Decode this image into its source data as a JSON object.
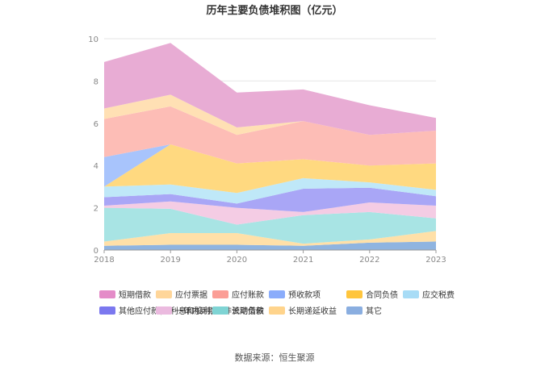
{
  "chart_data": {
    "type": "area",
    "stacked": true,
    "title": "历年主要负债堆积图（亿元）",
    "x": [
      "2018",
      "2019",
      "2020",
      "2021",
      "2022",
      "2023"
    ],
    "ylim": [
      0,
      10
    ],
    "yticks": [
      "0",
      "2",
      "4",
      "6",
      "8",
      "10"
    ],
    "grid": true,
    "legend_position": "bottom",
    "series": [
      {
        "name": "其它",
        "color": "#8fb4e0",
        "values": [
          0.2,
          0.25,
          0.25,
          0.2,
          0.35,
          0.4
        ]
      },
      {
        "name": "长期递延收益",
        "color": "#ffe0a8",
        "values": [
          0.2,
          0.55,
          0.55,
          0.1,
          0.15,
          0.5
        ]
      },
      {
        "name": "长期借款",
        "color": "#a8e4e4",
        "values": [
          1.6,
          1.15,
          0.4,
          1.35,
          1.3,
          0.6
        ]
      },
      {
        "name": "一年内到期的非流动负债",
        "color": "#f4cce4",
        "values": [
          0.1,
          0.35,
          0.8,
          0.15,
          0.45,
          0.6
        ]
      },
      {
        "name": "其他应付款(含利息和股利)",
        "color": "#a9a6f6",
        "values": [
          0.4,
          0.35,
          0.2,
          1.1,
          0.7,
          0.45
        ]
      },
      {
        "name": "应交税费",
        "color": "#bfe8f8",
        "values": [
          0.5,
          0.45,
          0.5,
          0.5,
          0.25,
          0.3
        ]
      },
      {
        "name": "合同负债",
        "color": "#ffd980",
        "values": [
          0,
          1.9,
          1.4,
          0.9,
          0.8,
          1.25
        ]
      },
      {
        "name": "预收款项",
        "color": "#a8c4fc",
        "values": [
          1.4,
          0,
          0,
          0,
          0,
          0
        ]
      },
      {
        "name": "应付账款",
        "color": "#fdbdb6",
        "values": [
          1.8,
          1.8,
          1.35,
          1.8,
          1.45,
          1.55
        ]
      },
      {
        "name": "应付票据",
        "color": "#ffe0b4",
        "values": [
          0.5,
          0.55,
          0.35,
          0,
          0,
          0
        ]
      },
      {
        "name": "短期借款",
        "color": "#e8acd4",
        "values": [
          2.2,
          2.45,
          1.65,
          1.5,
          1.4,
          0.6
        ]
      }
    ],
    "legend": [
      {
        "name": "短期借款",
        "color": "#e48cc8"
      },
      {
        "name": "应付票据",
        "color": "#ffd69a"
      },
      {
        "name": "应付账款",
        "color": "#fb9e96"
      },
      {
        "name": "预收款项",
        "color": "#8aacfb"
      },
      {
        "name": "合同负债",
        "color": "#ffc53d"
      },
      {
        "name": "应交税费",
        "color": "#a8dcf6"
      },
      {
        "name": "其他应付款(含利息和股利)",
        "color": "#7b78ef"
      },
      {
        "name": "一年内到期的非流动负债",
        "color": "#ebbadf"
      },
      {
        "name": "长期借款",
        "color": "#7fd4d4"
      },
      {
        "name": "长期递延收益",
        "color": "#ffd48c"
      },
      {
        "name": "其它",
        "color": "#8aaee0"
      }
    ]
  },
  "source": "数据来源：恒生聚源"
}
